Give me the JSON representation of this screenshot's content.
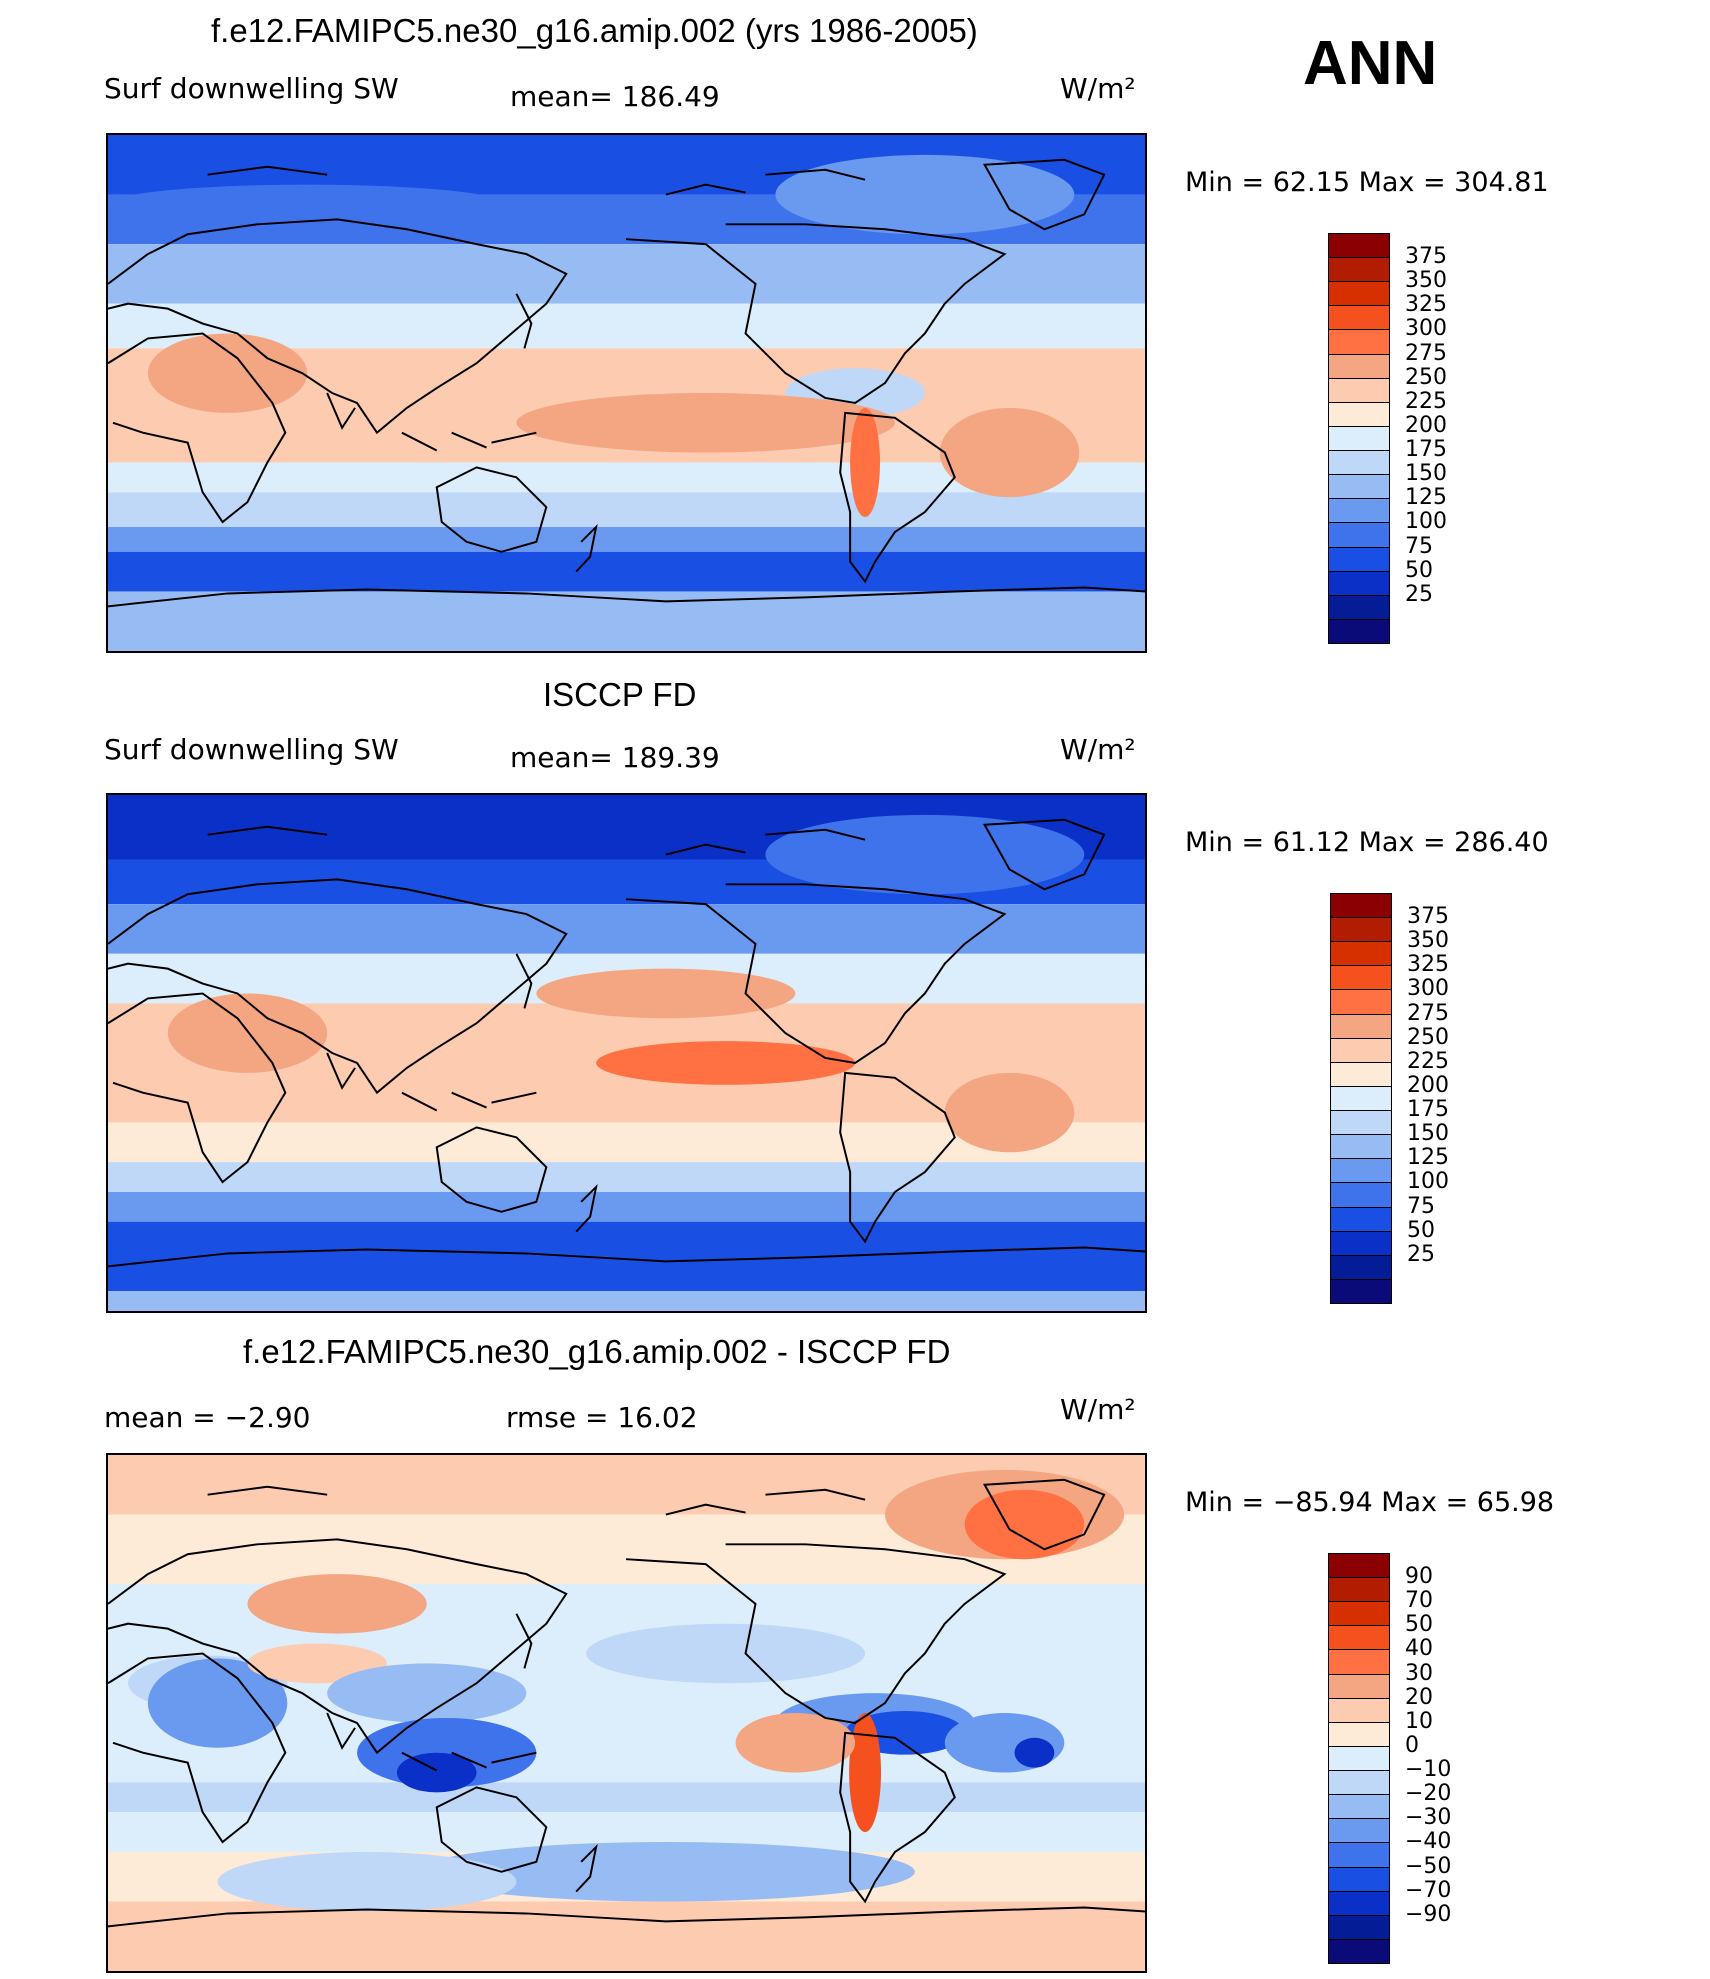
{
  "figure": {
    "season": "ANN"
  },
  "panels": [
    {
      "title": "f.e12.FAMIPC5.ne30_g16.amip.002 (yrs 1986-2005)",
      "left_text": "Surf downwelling SW",
      "center_text": "mean=  186.49",
      "units": "W/m²",
      "minmax": "Min =   62.15  Max  =  304.81",
      "colorbar_labels": [
        "375",
        "350",
        "325",
        "300",
        "275",
        "250",
        "225",
        "200",
        "175",
        "150",
        "125",
        "100",
        "75",
        "50",
        "25"
      ],
      "colors": [
        "#8b0000",
        "#b21c00",
        "#d62f00",
        "#f4511e",
        "#ff7043",
        "#f4a582",
        "#fdcbb0",
        "#fdebd8",
        "#dceefb",
        "#bfd8f8",
        "#97bcf4",
        "#6a9af0",
        "#3f73eb",
        "#1a4fe3",
        "#0a30c8",
        "#041c96",
        "#0a0a78"
      ],
      "chart_data": {
        "type": "heatmap",
        "title": "f.e12.FAMIPC5.ne30_g16.amip.002 (yrs 1986-2005)",
        "variable": "Surf downwelling SW",
        "units": "W/m²",
        "mean": 186.49,
        "min": 62.15,
        "max": 304.81,
        "levels": [
          25,
          50,
          75,
          100,
          125,
          150,
          175,
          200,
          225,
          250,
          275,
          300,
          325,
          350,
          375
        ]
      }
    },
    {
      "title": "ISCCP FD",
      "left_text": "Surf downwelling SW",
      "center_text": "mean=  189.39",
      "units": "W/m²",
      "minmax": "Min =   61.12  Max  =  286.40",
      "colorbar_labels": [
        "375",
        "350",
        "325",
        "300",
        "275",
        "250",
        "225",
        "200",
        "175",
        "150",
        "125",
        "100",
        "75",
        "50",
        "25"
      ],
      "colors": [
        "#8b0000",
        "#b21c00",
        "#d62f00",
        "#f4511e",
        "#ff7043",
        "#f4a582",
        "#fdcbb0",
        "#fdebd8",
        "#dceefb",
        "#bfd8f8",
        "#97bcf4",
        "#6a9af0",
        "#3f73eb",
        "#1a4fe3",
        "#0a30c8",
        "#041c96",
        "#0a0a78"
      ],
      "chart_data": {
        "type": "heatmap",
        "title": "ISCCP FD",
        "variable": "Surf downwelling SW",
        "units": "W/m²",
        "mean": 189.39,
        "min": 61.12,
        "max": 286.4,
        "levels": [
          25,
          50,
          75,
          100,
          125,
          150,
          175,
          200,
          225,
          250,
          275,
          300,
          325,
          350,
          375
        ]
      }
    },
    {
      "title": "f.e12.FAMIPC5.ne30_g16.amip.002 - ISCCP FD",
      "left_text": "mean  =    −2.90",
      "center_text": "rmse  =    16.02",
      "units": "W/m²",
      "minmax": "Min  = −85.94  Max  =    65.98",
      "colorbar_labels": [
        "90",
        "70",
        "50",
        "40",
        "30",
        "20",
        "10",
        "0",
        "−10",
        "−20",
        "−30",
        "−40",
        "−50",
        "−70",
        "−90"
      ],
      "colors": [
        "#8b0000",
        "#b21c00",
        "#d62f00",
        "#f4511e",
        "#ff7043",
        "#f4a582",
        "#fdcbb0",
        "#fdebd8",
        "#dceefb",
        "#bfd8f8",
        "#97bcf4",
        "#6a9af0",
        "#3f73eb",
        "#1a4fe3",
        "#0a30c8",
        "#041c96",
        "#0a0a78"
      ],
      "chart_data": {
        "type": "heatmap",
        "title": "f.e12.FAMIPC5.ne30_g16.amip.002 - ISCCP FD",
        "units": "W/m²",
        "mean": -2.9,
        "rmse": 16.02,
        "min": -85.94,
        "max": 65.98,
        "levels": [
          -90,
          -70,
          -50,
          -40,
          -30,
          -20,
          -10,
          0,
          10,
          20,
          30,
          40,
          50,
          70,
          90
        ]
      }
    }
  ]
}
